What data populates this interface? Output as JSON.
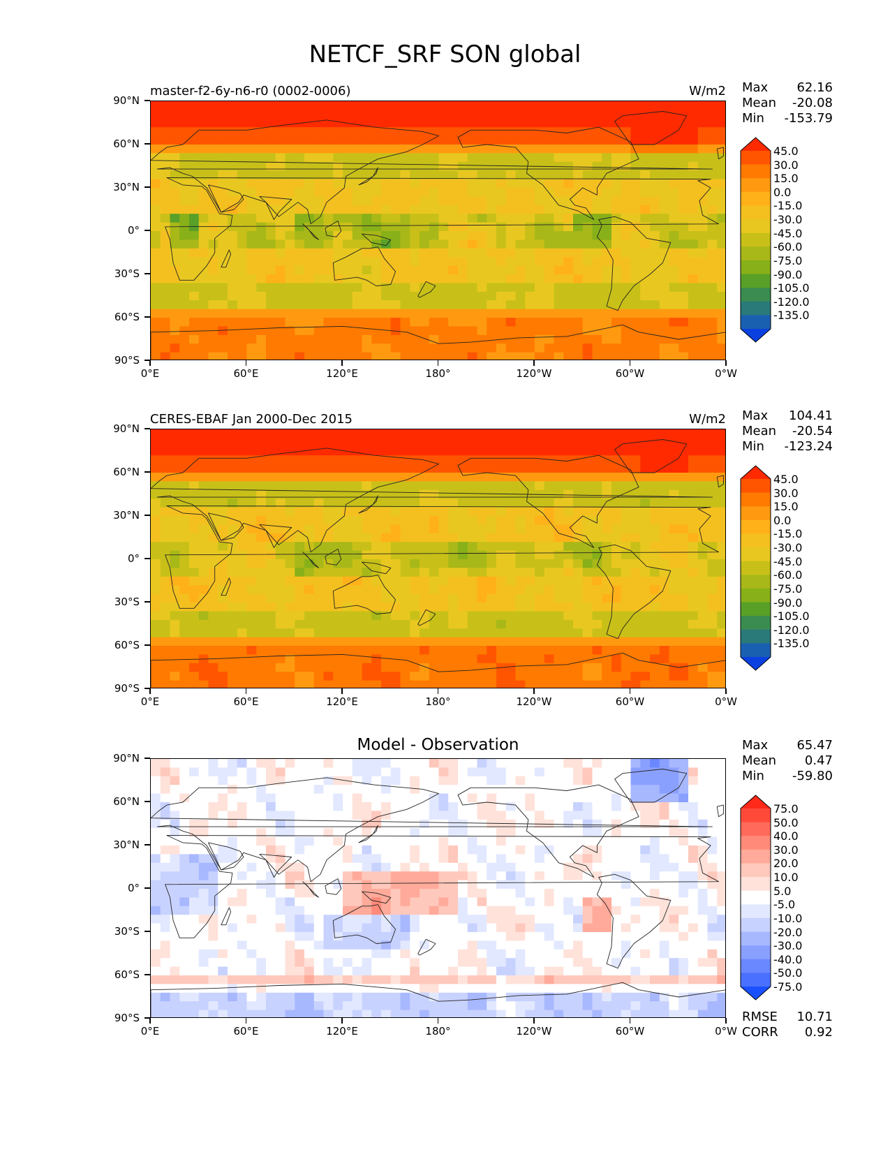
{
  "figure": {
    "title": "NETCF_SRF SON global"
  },
  "axes": {
    "lat_labels": [
      "90°N",
      "60°N",
      "30°N",
      "0°",
      "30°S",
      "60°S",
      "90°S"
    ],
    "lon_labels": [
      "0°E",
      "60°E",
      "120°E",
      "180°",
      "120°W",
      "60°W",
      "0°W"
    ]
  },
  "panels": [
    {
      "title": "master-f2-6y-n6-r0 (0002-0006)",
      "units": "W/m2",
      "stats": {
        "max_label": "Max",
        "max": "62.16",
        "mean_label": "Mean",
        "mean": "-20.08",
        "min_label": "Min",
        "min": "-153.79"
      },
      "colorbar": {
        "labels": [
          "45.0",
          "30.0",
          "15.0",
          "0.0",
          "-15.0",
          "-30.0",
          "-45.0",
          "-60.0",
          "-75.0",
          "-90.0",
          "-105.0",
          "-120.0",
          "-135.0"
        ],
        "colors": [
          "#ff2a00",
          "#ff5500",
          "#ff7a00",
          "#ff9a10",
          "#ffb11a",
          "#f4c020",
          "#e8c820",
          "#c8c018",
          "#a8b818",
          "#88b018",
          "#58a028",
          "#3a8c50",
          "#2a7a7a",
          "#1a60b0",
          "#0a40e0"
        ]
      },
      "field": "model"
    },
    {
      "title": "CERES-EBAF Jan 2000-Dec 2015",
      "units": "W/m2",
      "stats": {
        "max_label": "Max",
        "max": "104.41",
        "mean_label": "Mean",
        "mean": "-20.54",
        "min_label": "Min",
        "min": "-123.24"
      },
      "colorbar": {
        "labels": [
          "45.0",
          "30.0",
          "15.0",
          "0.0",
          "-15.0",
          "-30.0",
          "-45.0",
          "-60.0",
          "-75.0",
          "-90.0",
          "-105.0",
          "-120.0",
          "-135.0"
        ],
        "colors": [
          "#ff2a00",
          "#ff5500",
          "#ff7a00",
          "#ff9a10",
          "#ffb11a",
          "#f4c020",
          "#e8c820",
          "#c8c018",
          "#a8b818",
          "#88b018",
          "#58a028",
          "#3a8c50",
          "#2a7a7a",
          "#1a60b0",
          "#0a40e0"
        ]
      },
      "field": "obs"
    },
    {
      "title": "Model - Observation",
      "units": "",
      "stats": {
        "max_label": "Max",
        "max": "65.47",
        "mean_label": "Mean",
        "mean": "0.47",
        "min_label": "Min",
        "min": "-59.80"
      },
      "colorbar": {
        "labels": [
          "75.0",
          "50.0",
          "40.0",
          "30.0",
          "20.0",
          "10.0",
          "5.0",
          "-5.0",
          "-10.0",
          "-20.0",
          "-30.0",
          "-40.0",
          "-50.0",
          "-75.0"
        ],
        "colors": [
          "#ff2a1a",
          "#ff4a3a",
          "#ff6a5a",
          "#ff8a7a",
          "#ffaa9a",
          "#ffc8bc",
          "#ffe2da",
          "#ffffff",
          "#e2e8ff",
          "#c8d2ff",
          "#a8b8ff",
          "#8aa0ff",
          "#6a88ff",
          "#4a70ff",
          "#1a50ff"
        ]
      },
      "summary": {
        "rmse_label": "RMSE",
        "rmse": "10.71",
        "corr_label": "CORR",
        "corr": "0.92"
      },
      "field": "diff"
    }
  ]
}
